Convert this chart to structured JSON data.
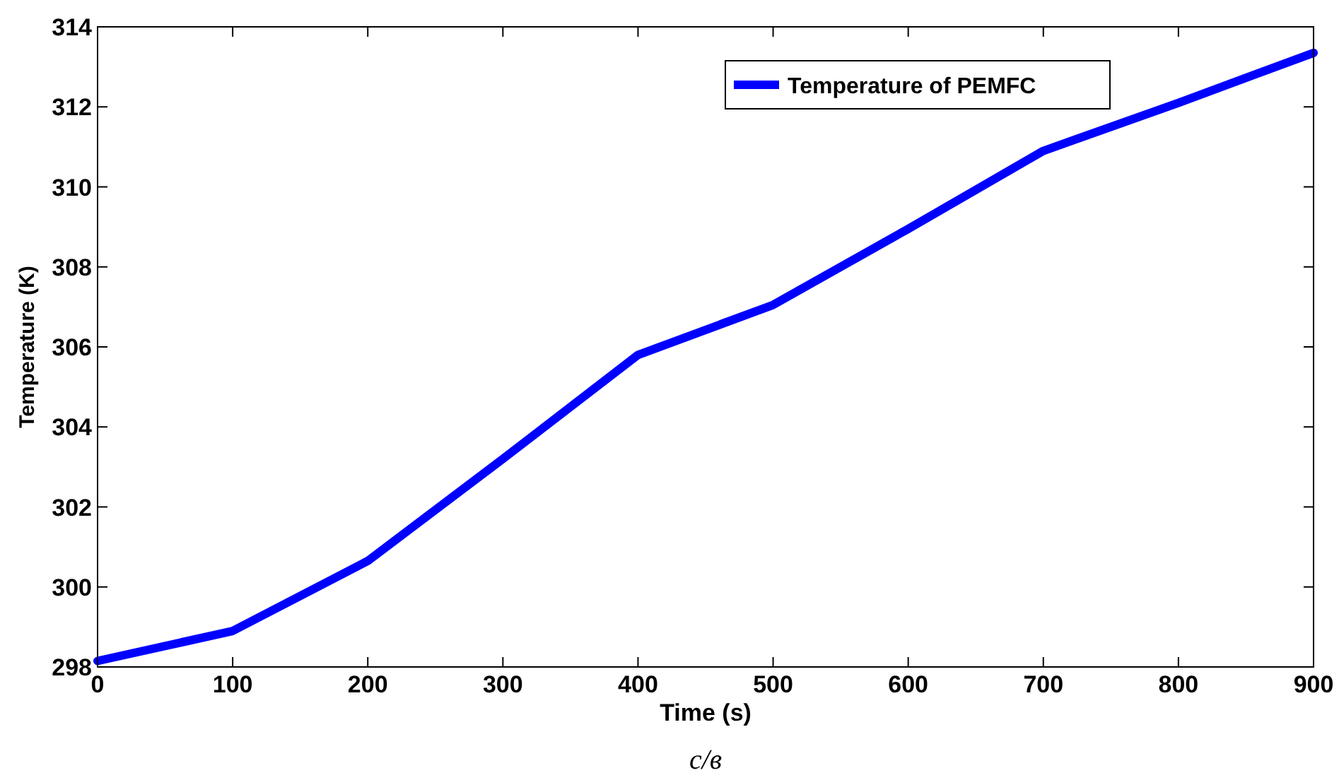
{
  "chart_data": {
    "type": "line",
    "xlabel": "Time (s)",
    "ylabel": "Temperature (K)",
    "x": [
      0,
      100,
      200,
      300,
      400,
      500,
      600,
      700,
      800,
      900
    ],
    "series": [
      {
        "name": "Temperature of PEMFC",
        "color": "#0000ff",
        "values": [
          298.15,
          298.9,
          300.65,
          303.2,
          305.8,
          307.05,
          308.95,
          310.9,
          312.1,
          313.35
        ]
      }
    ],
    "xlim": [
      0,
      900
    ],
    "xticks": [
      0,
      100,
      200,
      300,
      400,
      500,
      600,
      700,
      800,
      900
    ],
    "ylim": [
      298,
      314
    ],
    "yticks": [
      298,
      300,
      302,
      304,
      306,
      308,
      310,
      312,
      314
    ],
    "grid": false,
    "legend": "top right",
    "marker": "none",
    "line_style": "solid",
    "annotations": [
      "c/в"
    ]
  }
}
